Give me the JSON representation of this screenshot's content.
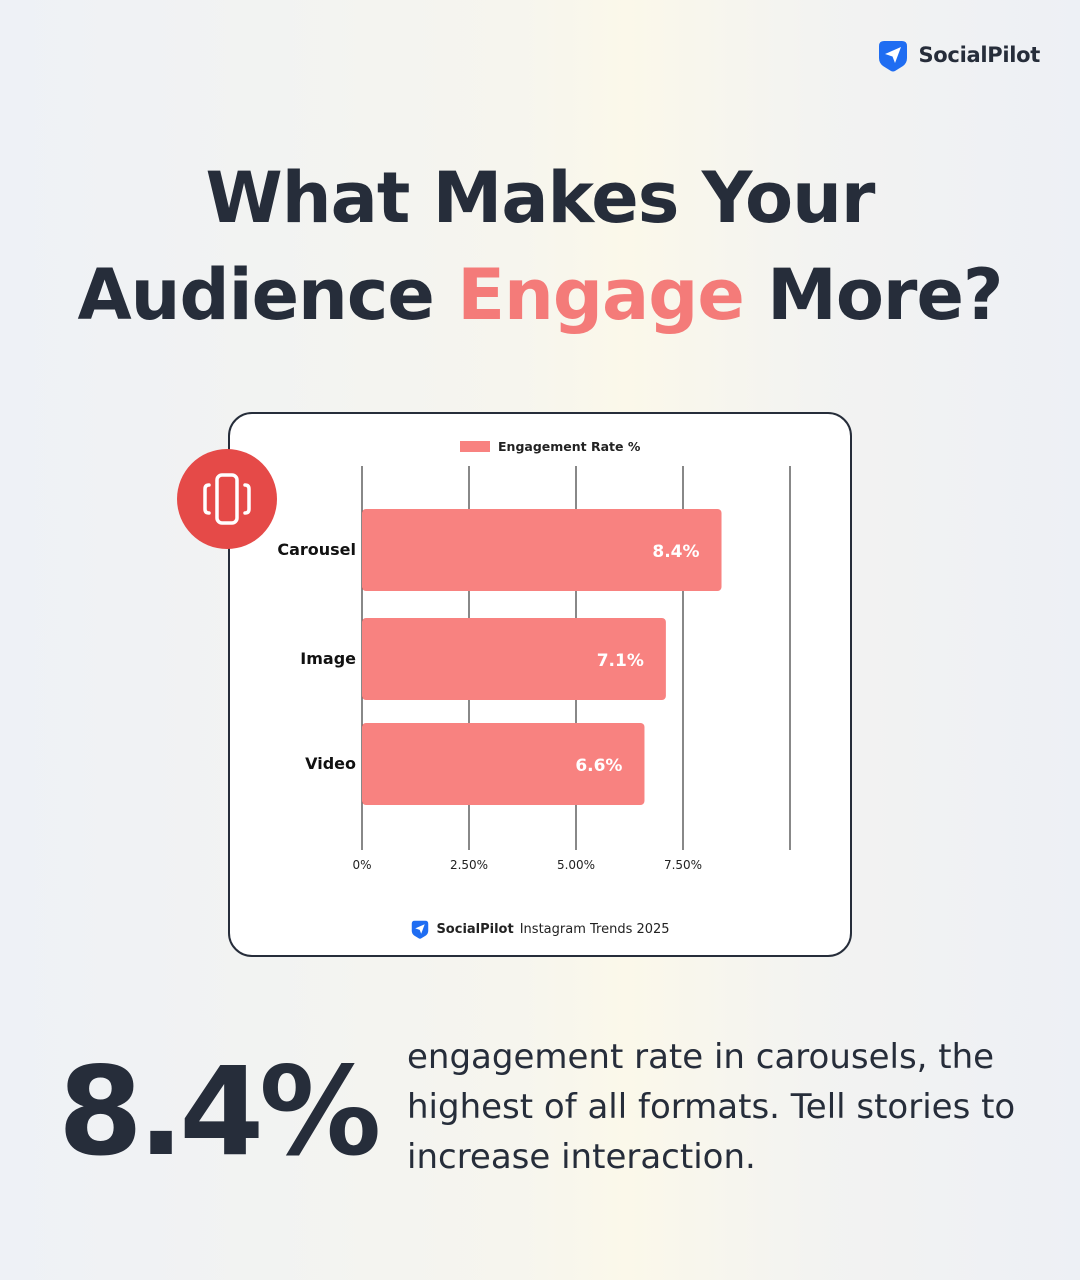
{
  "brand": {
    "name": "SocialPilot",
    "icon": "paper-plane-icon",
    "color": "#1f6df2"
  },
  "headline": {
    "line1": "What Makes Your",
    "line2_pre": "Audience",
    "line2_accent": "Engage",
    "line2_post": "More?"
  },
  "colors": {
    "accent": "#f47b79",
    "bar": "#f88280",
    "badge": "#e54a48",
    "text": "#262d3a"
  },
  "chart_data": {
    "type": "bar",
    "orientation": "horizontal",
    "legend": {
      "label": "Engagement Rate %",
      "placement": "top-center"
    },
    "categories": [
      "Carousel",
      "Image",
      "Video"
    ],
    "values": [
      8.4,
      7.1,
      6.6
    ],
    "value_labels": [
      "8.4%",
      "7.1%",
      "6.6%"
    ],
    "x_ticks": [
      {
        "value": 0,
        "label": "0%"
      },
      {
        "value": 2.5,
        "label": "2.50%"
      },
      {
        "value": 5,
        "label": "5.00%"
      },
      {
        "value": 7.5,
        "label": "7.50%"
      }
    ],
    "xlim": [
      0,
      10
    ],
    "grid": true
  },
  "source": {
    "brand": "SocialPilot",
    "text": "Instagram Trends 2025"
  },
  "badge_icon": "carousel-icon",
  "stat": {
    "value": "8.4%",
    "desc_lines": [
      "engagement rate in carousels, the",
      "highest of all formats. Tell stories to",
      "increase interaction."
    ]
  }
}
